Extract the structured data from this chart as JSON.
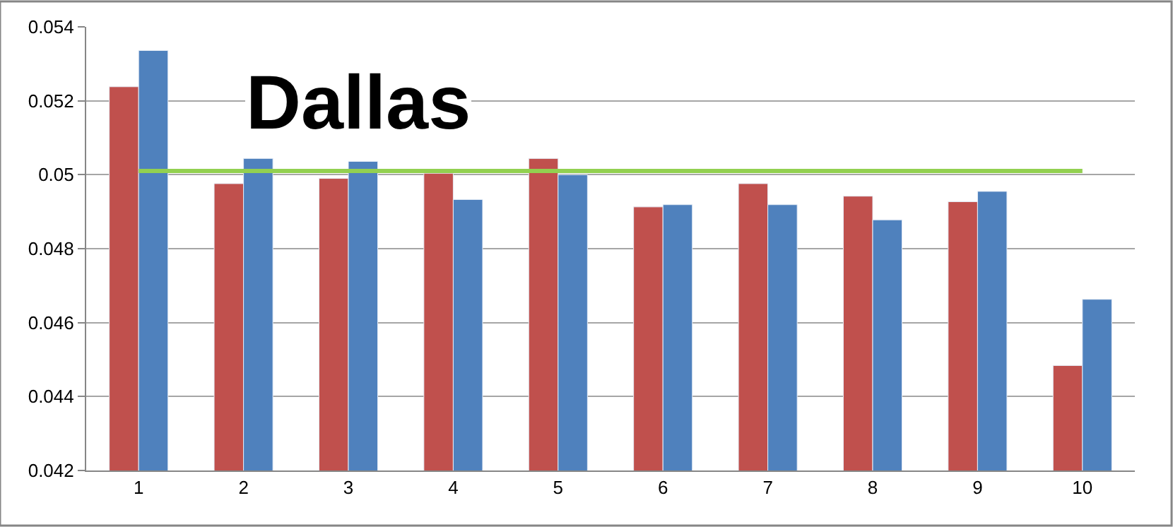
{
  "chart_data": {
    "type": "bar",
    "title": "Dallas",
    "categories": [
      "1",
      "2",
      "3",
      "4",
      "5",
      "6",
      "7",
      "8",
      "9",
      "10"
    ],
    "series": [
      {
        "color": "#c0504d",
        "values": [
          0.05238,
          0.04976,
          0.0499,
          0.05004,
          0.05044,
          0.04913,
          0.04976,
          0.04942,
          0.04927,
          0.04484
        ]
      },
      {
        "color": "#4f81bd",
        "values": [
          0.05336,
          0.05044,
          0.05036,
          0.04933,
          0.05,
          0.04919,
          0.04919,
          0.04878,
          0.04955,
          0.04663
        ]
      },
      {
        "type": "line",
        "color": "#92d050",
        "marker": "none",
        "values": [
          0.0501,
          0.0501,
          0.0501,
          0.0501,
          0.0501,
          0.0501,
          0.0501,
          0.0501,
          0.0501,
          0.0501
        ]
      }
    ],
    "ylim": [
      0.042,
      0.054
    ],
    "yticks": [
      0.042,
      0.044,
      0.046,
      0.048,
      0.05,
      0.052,
      0.054
    ],
    "grid": "y"
  }
}
